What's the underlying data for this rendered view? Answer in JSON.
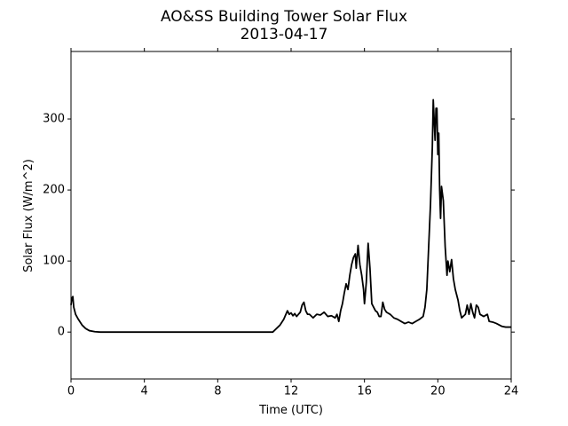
{
  "chart_data": {
    "type": "line",
    "title": "AO&SS Building Tower Solar Flux",
    "subtitle": "2013-04-17",
    "xlabel": "Time (UTC)",
    "ylabel": "Solar Flux (W/m^2)",
    "xlim": [
      0,
      24
    ],
    "xticks": [
      0,
      4,
      8,
      12,
      16,
      20,
      24
    ],
    "ylim": [
      -66,
      395
    ],
    "yticks": [
      0,
      100,
      200,
      300
    ],
    "grid": false,
    "x": [
      0,
      0.05,
      0.1,
      0.15,
      0.25,
      0.4,
      0.6,
      0.8,
      1.0,
      1.3,
      1.6,
      11.0,
      11.2,
      11.4,
      11.6,
      11.8,
      11.9,
      12.0,
      12.1,
      12.2,
      12.3,
      12.5,
      12.6,
      12.7,
      12.8,
      12.9,
      13.0,
      13.2,
      13.4,
      13.6,
      13.8,
      14.0,
      14.2,
      14.4,
      14.5,
      14.6,
      14.7,
      14.8,
      14.9,
      15.0,
      15.1,
      15.2,
      15.3,
      15.4,
      15.5,
      15.55,
      15.65,
      15.75,
      15.85,
      15.95,
      16.0,
      16.1,
      16.2,
      16.3,
      16.4,
      16.5,
      16.6,
      16.7,
      16.8,
      16.9,
      17.0,
      17.1,
      17.2,
      17.4,
      17.6,
      17.8,
      18.0,
      18.2,
      18.4,
      18.6,
      18.8,
      19.0,
      19.2,
      19.3,
      19.4,
      19.5,
      19.6,
      19.7,
      19.75,
      19.85,
      19.9,
      19.95,
      20.0,
      20.05,
      20.1,
      20.15,
      20.2,
      20.3,
      20.4,
      20.5,
      20.55,
      20.65,
      20.75,
      20.85,
      20.95,
      21.1,
      21.2,
      21.3,
      21.5,
      21.6,
      21.7,
      21.8,
      21.9,
      22.0,
      22.1,
      22.2,
      22.3,
      22.5,
      22.7,
      22.8,
      23.0,
      23.2,
      23.5,
      23.7,
      24.0
    ],
    "series": [
      {
        "name": "Solar Flux",
        "color": "#000000",
        "values": [
          38,
          48,
          50,
          35,
          25,
          18,
          10,
          5,
          2,
          0.5,
          0,
          0,
          5,
          10,
          18,
          30,
          25,
          27,
          23,
          26,
          22,
          28,
          38,
          42,
          30,
          25,
          25,
          20,
          25,
          24,
          28,
          22,
          23,
          20,
          25,
          15,
          30,
          40,
          55,
          68,
          60,
          80,
          95,
          105,
          110,
          90,
          122,
          95,
          80,
          60,
          40,
          70,
          125,
          90,
          40,
          35,
          30,
          28,
          22,
          22,
          42,
          32,
          28,
          25,
          20,
          18,
          15,
          12,
          14,
          12,
          15,
          18,
          22,
          35,
          60,
          120,
          180,
          260,
          327,
          270,
          315,
          315,
          250,
          280,
          200,
          160,
          205,
          185,
          120,
          80,
          100,
          85,
          102,
          75,
          60,
          45,
          30,
          20,
          25,
          38,
          25,
          40,
          28,
          20,
          38,
          35,
          25,
          22,
          25,
          15,
          14,
          12,
          8,
          7,
          7
        ]
      }
    ]
  }
}
